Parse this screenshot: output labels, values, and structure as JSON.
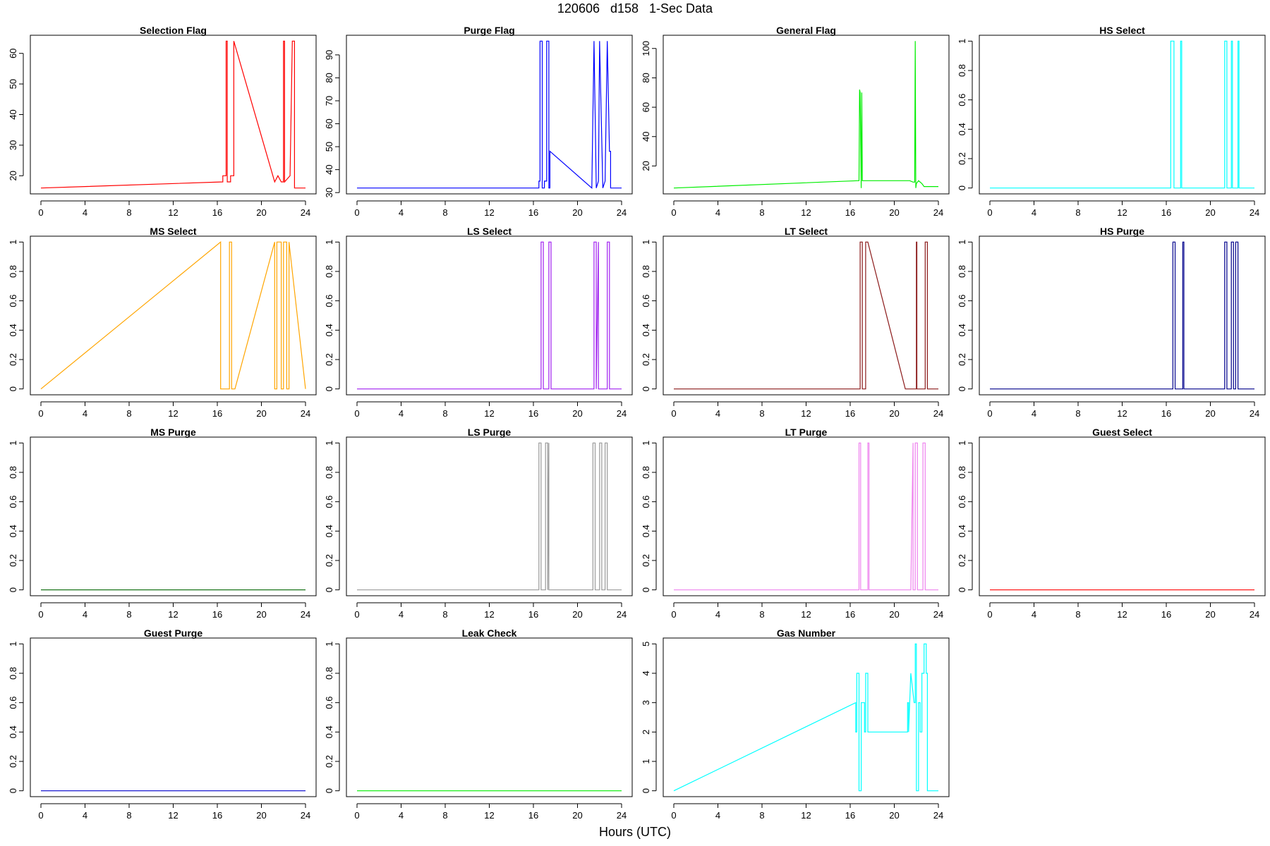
{
  "title": "120606   d158   1-Sec Data",
  "xlabel": "Hours (UTC)",
  "chart_data": [
    {
      "type": "line",
      "title": "Selection Flag",
      "color": "#ff0000",
      "xlim": [
        0,
        24
      ],
      "ylim": [
        16,
        64
      ],
      "xticks": [
        0,
        4,
        8,
        12,
        16,
        20,
        24
      ],
      "yticks": [
        20,
        30,
        40,
        50,
        60
      ],
      "x": [
        0,
        16.5,
        16.5,
        16.8,
        16.8,
        16.9,
        16.9,
        17.2,
        17.2,
        17.5,
        17.5,
        21.2,
        21.2,
        21.5,
        21.5,
        21.8,
        21.8,
        22.0,
        22.0,
        22.1,
        22.1,
        22.6,
        22.6,
        22.8,
        22.8,
        23.0,
        23.0,
        24
      ],
      "y": [
        16,
        18,
        20,
        20,
        64,
        64,
        18,
        18,
        20,
        20,
        64,
        18,
        18,
        20,
        20,
        18,
        18,
        18,
        64,
        64,
        18,
        20,
        20,
        64,
        64,
        64,
        16,
        16
      ]
    },
    {
      "type": "line",
      "title": "Purge Flag",
      "color": "#0000ff",
      "xlim": [
        0,
        24
      ],
      "ylim": [
        32,
        96
      ],
      "xticks": [
        0,
        4,
        8,
        12,
        16,
        20,
        24
      ],
      "yticks": [
        30,
        40,
        50,
        60,
        70,
        80,
        90
      ],
      "x": [
        0,
        16.5,
        16.5,
        16.6,
        16.6,
        16.8,
        16.8,
        17.0,
        17.0,
        17.2,
        17.2,
        17.4,
        17.4,
        17.5,
        17.5,
        21.3,
        21.3,
        21.5,
        21.5,
        21.7,
        21.7,
        21.9,
        21.9,
        22.0,
        22.0,
        22.3,
        22.3,
        22.5,
        22.5,
        22.7,
        22.7,
        22.9,
        22.9,
        23.0,
        23.0,
        24
      ],
      "y": [
        32,
        32,
        35,
        35,
        96,
        96,
        32,
        32,
        35,
        35,
        96,
        96,
        32,
        32,
        48,
        32,
        32,
        96,
        96,
        32,
        32,
        35,
        35,
        96,
        96,
        32,
        32,
        35,
        35,
        96,
        96,
        48,
        48,
        48,
        32,
        32
      ]
    },
    {
      "type": "line",
      "title": "General Flag",
      "color": "#00ee00",
      "xlim": [
        0,
        24
      ],
      "ylim": [
        5,
        105
      ],
      "xticks": [
        0,
        4,
        8,
        12,
        16,
        20,
        24
      ],
      "yticks": [
        20,
        40,
        60,
        80,
        100
      ],
      "x": [
        0,
        16.7,
        16.8,
        16.85,
        16.9,
        17.0,
        17.05,
        17.1,
        17.2,
        17.5,
        21.0,
        21.4,
        21.7,
        21.85,
        21.9,
        21.95,
        22.0,
        22.2,
        22.5,
        22.7,
        22.8,
        24
      ],
      "y": [
        5,
        10,
        10,
        72,
        70,
        5,
        70,
        10,
        10,
        10,
        10,
        10,
        9,
        9,
        105,
        5,
        8,
        10,
        8,
        6,
        6,
        6
      ]
    },
    {
      "type": "line",
      "title": "HS Select",
      "color": "#00ffff",
      "xlim": [
        0,
        24
      ],
      "ylim": [
        0,
        1
      ],
      "xticks": [
        0,
        4,
        8,
        12,
        16,
        20,
        24
      ],
      "yticks": [
        0,
        0.2,
        0.4,
        0.6,
        0.8,
        1
      ],
      "x": [
        0,
        16.4,
        16.4,
        16.7,
        16.7,
        17.3,
        17.3,
        17.4,
        17.4,
        21.3,
        21.3,
        21.5,
        21.5,
        21.9,
        21.9,
        22.0,
        22.0,
        22.5,
        22.5,
        22.6,
        22.6,
        24
      ],
      "y": [
        0,
        0,
        1,
        1,
        0,
        0,
        1,
        1,
        0,
        0,
        1,
        1,
        0,
        0,
        1,
        1,
        0,
        0,
        1,
        1,
        0,
        0
      ]
    },
    {
      "type": "line",
      "title": "MS Select",
      "color": "#ffa500",
      "xlim": [
        0,
        24
      ],
      "ylim": [
        0,
        1
      ],
      "xticks": [
        0,
        4,
        8,
        12,
        16,
        20,
        24
      ],
      "yticks": [
        0,
        0.2,
        0.4,
        0.6,
        0.8,
        1
      ],
      "x": [
        0,
        16.3,
        16.3,
        17.1,
        17.1,
        17.3,
        17.3,
        17.6,
        21.2,
        21.2,
        21.4,
        21.4,
        21.8,
        21.8,
        22.0,
        22.0,
        22.3,
        22.3,
        22.5,
        22.5,
        24
      ],
      "y": [
        0,
        1,
        0,
        0,
        1,
        1,
        0,
        0,
        1,
        0,
        0,
        1,
        1,
        0,
        0,
        1,
        1,
        0,
        0,
        1,
        0
      ]
    },
    {
      "type": "line",
      "title": "LS Select",
      "color": "#a020f0",
      "xlim": [
        0,
        24
      ],
      "ylim": [
        0,
        1
      ],
      "xticks": [
        0,
        4,
        8,
        12,
        16,
        20,
        24
      ],
      "yticks": [
        0,
        0.2,
        0.4,
        0.6,
        0.8,
        1
      ],
      "x": [
        0,
        16.7,
        16.7,
        16.9,
        16.9,
        17.4,
        17.4,
        17.6,
        17.6,
        21.5,
        21.5,
        21.7,
        21.7,
        21.9,
        21.9,
        22.7,
        22.7,
        22.9,
        22.9,
        24
      ],
      "y": [
        0,
        0,
        1,
        1,
        0,
        0,
        1,
        1,
        0,
        0,
        1,
        1,
        0,
        1,
        0,
        0,
        1,
        1,
        0,
        0
      ]
    },
    {
      "type": "line",
      "title": "LT Select",
      "color": "#8b1a1a",
      "xlim": [
        0,
        24
      ],
      "ylim": [
        0,
        1
      ],
      "xticks": [
        0,
        4,
        8,
        12,
        16,
        20,
        24
      ],
      "yticks": [
        0,
        0.2,
        0.4,
        0.6,
        0.8,
        1
      ],
      "x": [
        0,
        16.9,
        16.9,
        17.1,
        17.1,
        17.4,
        17.4,
        17.6,
        21.0,
        22.0,
        22.0,
        22.05,
        22.05,
        22.8,
        22.8,
        23.0,
        23.0,
        24
      ],
      "y": [
        0,
        0,
        1,
        1,
        0,
        0,
        1,
        1,
        0,
        0,
        1,
        1,
        0,
        0,
        1,
        1,
        0,
        0
      ]
    },
    {
      "type": "line",
      "title": "HS Purge",
      "color": "#00008b",
      "xlim": [
        0,
        24
      ],
      "ylim": [
        0,
        1
      ],
      "xticks": [
        0,
        4,
        8,
        12,
        16,
        20,
        24
      ],
      "yticks": [
        0,
        0.2,
        0.4,
        0.6,
        0.8,
        1
      ],
      "x": [
        0,
        16.6,
        16.6,
        16.8,
        16.8,
        17.5,
        17.5,
        17.6,
        17.6,
        21.3,
        21.3,
        21.5,
        21.5,
        21.9,
        21.9,
        22.1,
        22.1,
        22.3,
        22.3,
        22.5,
        22.5,
        24
      ],
      "y": [
        0,
        0,
        1,
        1,
        0,
        0,
        1,
        1,
        0,
        0,
        1,
        1,
        0,
        0,
        1,
        1,
        0,
        0,
        1,
        1,
        0,
        0
      ]
    },
    {
      "type": "line",
      "title": "MS Purge",
      "color": "#006400",
      "xlim": [
        0,
        24
      ],
      "ylim": [
        0,
        1
      ],
      "xticks": [
        0,
        4,
        8,
        12,
        16,
        20,
        24
      ],
      "yticks": [
        0,
        0.2,
        0.4,
        0.6,
        0.8,
        1
      ],
      "x": [
        0,
        24
      ],
      "y": [
        0,
        0
      ]
    },
    {
      "type": "line",
      "title": "LS Purge",
      "color": "#999999",
      "xlim": [
        0,
        24
      ],
      "ylim": [
        0,
        1
      ],
      "xticks": [
        0,
        4,
        8,
        12,
        16,
        20,
        24
      ],
      "yticks": [
        0,
        0.2,
        0.4,
        0.6,
        0.8,
        1
      ],
      "x": [
        0,
        16.5,
        16.5,
        16.7,
        16.7,
        17.1,
        17.1,
        17.3,
        17.3,
        17.4,
        17.4,
        21.4,
        21.4,
        21.6,
        21.6,
        22.0,
        22.0,
        22.2,
        22.2,
        22.5,
        22.5,
        22.7,
        22.7,
        24
      ],
      "y": [
        0,
        0,
        1,
        1,
        0,
        0,
        1,
        1,
        0,
        1,
        0,
        0,
        1,
        1,
        0,
        0,
        1,
        1,
        0,
        0,
        1,
        1,
        0,
        0
      ]
    },
    {
      "type": "line",
      "title": "LT Purge",
      "color": "#ee82ee",
      "xlim": [
        0,
        24
      ],
      "ylim": [
        0,
        1
      ],
      "xticks": [
        0,
        4,
        8,
        12,
        16,
        20,
        24
      ],
      "yticks": [
        0,
        0.2,
        0.4,
        0.6,
        0.8,
        1
      ],
      "x": [
        0,
        16.8,
        16.8,
        16.95,
        16.95,
        17.6,
        17.6,
        17.7,
        17.7,
        21.5,
        21.7,
        21.7,
        21.9,
        21.9,
        22.1,
        22.1,
        22.6,
        22.6,
        22.8,
        22.8,
        24
      ],
      "y": [
        0,
        0,
        1,
        1,
        0,
        0,
        1,
        1,
        0,
        0,
        1,
        0,
        0,
        1,
        1,
        0,
        0,
        1,
        1,
        0,
        0
      ]
    },
    {
      "type": "line",
      "title": "Guest Select",
      "color": "#ff0000",
      "xlim": [
        0,
        24
      ],
      "ylim": [
        0,
        1
      ],
      "xticks": [
        0,
        4,
        8,
        12,
        16,
        20,
        24
      ],
      "yticks": [
        0,
        0.2,
        0.4,
        0.6,
        0.8,
        1
      ],
      "x": [
        0,
        24
      ],
      "y": [
        0,
        0
      ]
    },
    {
      "type": "line",
      "title": "Guest Purge",
      "color": "#0000cd",
      "xlim": [
        0,
        24
      ],
      "ylim": [
        0,
        1
      ],
      "xticks": [
        0,
        4,
        8,
        12,
        16,
        20,
        24
      ],
      "yticks": [
        0,
        0.2,
        0.4,
        0.6,
        0.8,
        1
      ],
      "x": [
        0,
        24
      ],
      "y": [
        0,
        0
      ]
    },
    {
      "type": "line",
      "title": "Leak Check",
      "color": "#00ee00",
      "xlim": [
        0,
        24
      ],
      "ylim": [
        0,
        1
      ],
      "xticks": [
        0,
        4,
        8,
        12,
        16,
        20,
        24
      ],
      "yticks": [
        0,
        0.2,
        0.4,
        0.6,
        0.8,
        1
      ],
      "x": [
        0,
        24
      ],
      "y": [
        0,
        0
      ]
    },
    {
      "type": "line",
      "title": "Gas Number",
      "color": "#00ffff",
      "xlim": [
        0,
        24
      ],
      "ylim": [
        0,
        5
      ],
      "xticks": [
        0,
        4,
        8,
        12,
        16,
        20,
        24
      ],
      "yticks": [
        0,
        1,
        2,
        3,
        4,
        5
      ],
      "x": [
        0,
        16.5,
        16.5,
        16.6,
        16.6,
        16.8,
        16.8,
        17.0,
        17.0,
        17.3,
        17.3,
        17.4,
        17.4,
        17.6,
        17.6,
        21.2,
        21.2,
        21.3,
        21.3,
        21.5,
        21.8,
        21.9,
        21.9,
        22.0,
        22.0,
        22.2,
        22.2,
        22.35,
        22.35,
        22.5,
        22.5,
        22.7,
        22.7,
        22.9,
        22.9,
        23.0,
        23.0,
        24
      ],
      "y": [
        0,
        3,
        2,
        2,
        4,
        4,
        0,
        0,
        3,
        3,
        2,
        2,
        4,
        4,
        2,
        2,
        3,
        3,
        2,
        4,
        3,
        3,
        5,
        5,
        0,
        0,
        3,
        3,
        2,
        2,
        4,
        4,
        5,
        5,
        4,
        4,
        0,
        0
      ]
    }
  ]
}
